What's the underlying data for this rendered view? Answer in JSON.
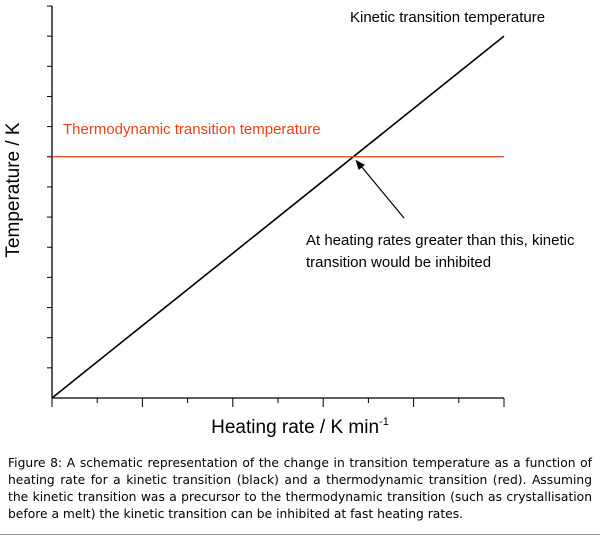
{
  "chart_data": {
    "type": "line",
    "xlabel": "Heating rate / K min",
    "xlabel_superscript": "-1",
    "ylabel": "Temperature / K",
    "xlim": [
      0,
      10
    ],
    "ylim": [
      0,
      13
    ],
    "x_ticks": [
      0,
      1,
      2,
      3,
      4,
      5,
      6,
      7,
      8,
      9,
      10
    ],
    "y_ticks": [
      1,
      2,
      3,
      4,
      5,
      6,
      7,
      8,
      9,
      10,
      11,
      12,
      13
    ],
    "grid": false,
    "series": [
      {
        "name": "Kinetic transition temperature",
        "color": "#000000",
        "x": [
          0,
          10
        ],
        "y": [
          0,
          12
        ]
      },
      {
        "name": "Thermodynamic transition temperature",
        "color": "#e8401c",
        "x": [
          0,
          10
        ],
        "y": [
          8,
          8
        ]
      }
    ],
    "annotations": [
      {
        "text_lines": [
          "At heating rates greater than this, kinetic",
          "transition would be inhibited"
        ],
        "points_to": {
          "x": 6.67,
          "y": 8
        }
      }
    ]
  },
  "caption": "Figure 8: A schematic representation of the change in transition temperature as a function of heating rate for a kinetic transition (black) and a thermodynamic transition (red). Assuming the kinetic transition was a precursor to the thermodynamic transition (such as crystallisation before a melt) the kinetic transition can be inhibited at fast heating rates."
}
